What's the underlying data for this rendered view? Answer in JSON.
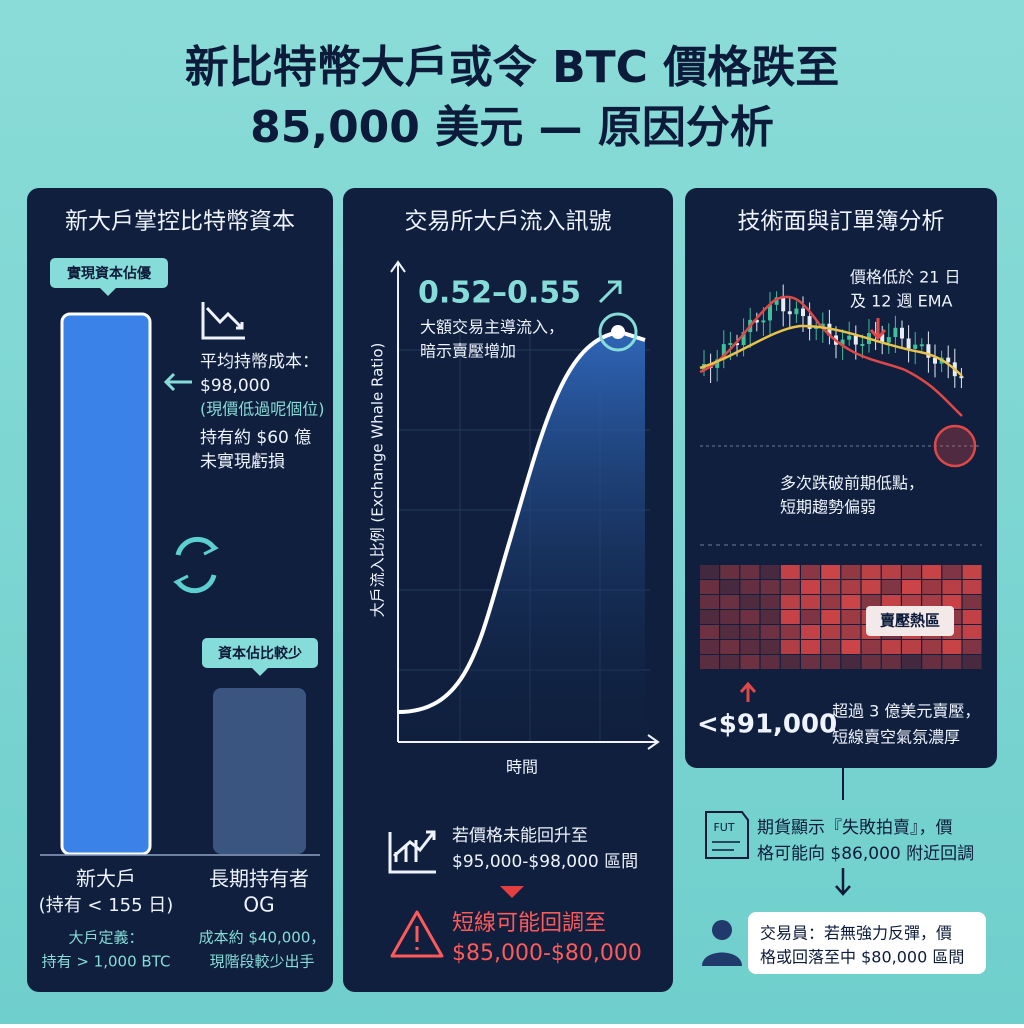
{
  "header": {
    "title_lines": [
      "新比特幣大戶或令 BTC 價格跌至",
      "85,000 美元 — 原因分析"
    ]
  },
  "panels": [
    {
      "title": "新大戶掌控比特幣資本",
      "tag_new": "實現資本佔優",
      "note_lines": [
        "平均持幣成本：",
        "$98,000",
        "(現價低過呢個位)",
        "持有約 $60 億",
        "未實現虧損"
      ],
      "tag_og": "資本佔比較少",
      "bar_new_label": [
        "新大戶",
        "(持有 < 155 日)"
      ],
      "bar_og_label": [
        "長期持有者",
        "OG"
      ],
      "foot_new": [
        "大戶定義：",
        "持有 > 1,000 BTC"
      ],
      "foot_og": [
        "成本約 $40,000，",
        "現階段較少出手"
      ]
    },
    {
      "title": "交易所大戶流入訊號",
      "ratio": "0.52–0.55",
      "ratio_note": [
        "大額交易主導流入，",
        "暗示賣壓增加"
      ],
      "y_axis_label": "大戶流入比例 (Exchange Whale Ratio)",
      "x_axis_label": "時間",
      "condition": [
        "若價格未能回升至",
        "$95,000-$98,000 區間"
      ],
      "warning": [
        "短線可能回調至",
        "$85,000-$80,000"
      ]
    },
    {
      "title": "技術面與訂單簿分析",
      "ema_note": [
        "價格低於 21 日",
        "及 12 週 EMA"
      ],
      "low_note": [
        "多次跌破前期低點，",
        "短期趨勢偏弱"
      ],
      "heat_label": "賣壓熱區",
      "level": "<$91,000",
      "level_note": [
        "超過 3 億美元賣壓，",
        "短線賣空氣氛濃厚"
      ]
    }
  ],
  "footer": {
    "icon_label": "FUT",
    "futures": [
      "期貨顯示『失敗拍賣』，價",
      "格可能向 $86,000 附近回調"
    ],
    "trader": [
      "交易員：若無強力反彈，價",
      "格或回落至中 $80,000 區間"
    ]
  }
}
